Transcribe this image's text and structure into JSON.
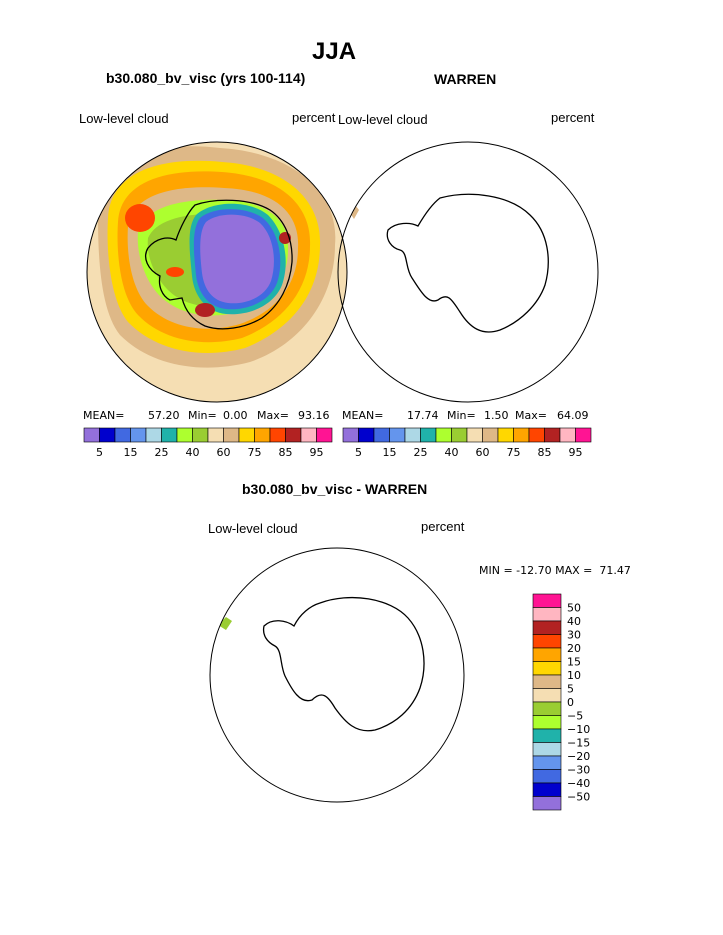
{
  "page": {
    "title": "JJA"
  },
  "panels": [
    {
      "subtitle": "b30.080_bv_visc (yrs 100-114)",
      "left_label": "Low-level cloud",
      "right_label": "percent",
      "stats": {
        "mean_label": "MEAN=",
        "mean": "57.20",
        "min_label": "Min=",
        "min": "0.00",
        "max_label": "Max=",
        "max": "93.16"
      }
    },
    {
      "subtitle": "WARREN",
      "left_label": "Low-level cloud",
      "right_label": "percent",
      "stats": {
        "mean_label": "MEAN=",
        "mean": "17.74",
        "min_label": "Min=",
        "min": "1.50",
        "max_label": "Max=",
        "max": "64.09"
      }
    },
    {
      "subtitle": "b30.080_bv_visc - WARREN",
      "left_label": "Low-level cloud",
      "right_label": "percent",
      "stats_text": "MIN = -12.70 MAX =  71.47"
    }
  ],
  "chart_data": [
    {
      "type": "heatmap",
      "projection": "south-polar stereographic",
      "title": "b30.080_bv_visc (yrs 100-114)",
      "variable": "Low-level cloud",
      "units": "percent",
      "mean": 57.2,
      "min": 0.0,
      "max": 93.16,
      "colorbar_levels": [
        5,
        10,
        15,
        20,
        25,
        30,
        40,
        50,
        60,
        70,
        75,
        80,
        85,
        90,
        95
      ],
      "colorbar_tick_labels": [
        "5",
        "15",
        "25",
        "40",
        "60",
        "75",
        "85",
        "95"
      ],
      "colorbar_colors": [
        "#9370db",
        "#0000cd",
        "#4169e1",
        "#6495ed",
        "#add8e6",
        "#20b2aa",
        "#adff2f",
        "#9acd32",
        "#f5deb3",
        "#deb887",
        "#ffd700",
        "#ffa500",
        "#ff4500",
        "#b22222",
        "#ffb6c1",
        "#ff1493"
      ]
    },
    {
      "type": "heatmap",
      "projection": "south-polar stereographic",
      "title": "WARREN",
      "variable": "Low-level cloud",
      "units": "percent",
      "mean": 17.74,
      "min": 1.5,
      "max": 64.09,
      "colorbar_levels": [
        5,
        10,
        15,
        20,
        25,
        30,
        40,
        50,
        60,
        70,
        75,
        80,
        85,
        90,
        95
      ],
      "colorbar_tick_labels": [
        "5",
        "15",
        "25",
        "40",
        "60",
        "75",
        "85",
        "95"
      ],
      "colorbar_colors": [
        "#9370db",
        "#0000cd",
        "#4169e1",
        "#6495ed",
        "#add8e6",
        "#20b2aa",
        "#adff2f",
        "#9acd32",
        "#f5deb3",
        "#deb887",
        "#ffd700",
        "#ffa500",
        "#ff4500",
        "#b22222",
        "#ffb6c1",
        "#ff1493"
      ]
    },
    {
      "type": "heatmap",
      "projection": "south-polar stereographic",
      "title": "b30.080_bv_visc - WARREN",
      "variable": "Low-level cloud",
      "units": "percent",
      "min": -12.7,
      "max": 71.47,
      "colorbar_orientation": "vertical",
      "colorbar_tick_labels": [
        "50",
        "40",
        "30",
        "20",
        "15",
        "10",
        "5",
        "0",
        "−5",
        "−10",
        "−15",
        "−20",
        "−30",
        "−40",
        "−50"
      ],
      "colorbar_colors": [
        "#ff1493",
        "#ffb6c1",
        "#b22222",
        "#ff4500",
        "#ffa500",
        "#ffd700",
        "#deb887",
        "#f5deb3",
        "#9acd32",
        "#adff2f",
        "#20b2aa",
        "#add8e6",
        "#6495ed",
        "#4169e1",
        "#0000cd",
        "#9370db"
      ]
    }
  ]
}
